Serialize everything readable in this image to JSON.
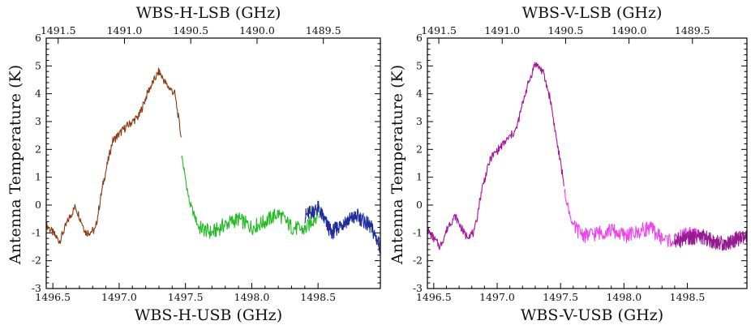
{
  "chart_data": [
    {
      "type": "line",
      "xlabel": "WBS-H-USB (GHz)",
      "x2label": "WBS-H-LSB (GHz)",
      "ylabel": "Antenna Temperature (K)",
      "xlim": [
        1496.45,
        1498.97
      ],
      "ylim": [
        -3,
        6
      ],
      "xticks": [
        "1496.5",
        "1497.0",
        "1497.5",
        "1498.0",
        "1498.5"
      ],
      "x2ticks": [
        "1491.5",
        "1491.0",
        "1490.5",
        "1490.0",
        "1489.5"
      ],
      "yticks": [
        "-3",
        "-2",
        "-1",
        "0",
        "1",
        "2",
        "3",
        "4",
        "5",
        "6"
      ],
      "series": [
        {
          "color": "#8b3a0f",
          "x": [
            1496.45,
            1496.55,
            1496.62,
            1496.67,
            1496.75,
            1496.82,
            1496.88,
            1496.95,
            1497.05,
            1497.15,
            1497.22,
            1497.3,
            1497.36,
            1497.42,
            1497.47
          ],
          "y": [
            -0.7,
            -1.3,
            -0.5,
            -0.05,
            -1.0,
            -0.9,
            0.8,
            2.3,
            2.8,
            3.2,
            4.1,
            4.8,
            4.3,
            4.0,
            2.4
          ]
        },
        {
          "color": "#22bb22",
          "x": [
            1497.47,
            1497.53,
            1497.6,
            1497.7,
            1497.8,
            1497.9,
            1498.0,
            1498.1,
            1498.2,
            1498.3,
            1498.4,
            1498.5
          ],
          "y": [
            1.8,
            0.1,
            -0.8,
            -1.0,
            -0.7,
            -0.5,
            -0.8,
            -0.6,
            -0.3,
            -0.8,
            -0.9,
            -0.3
          ]
        },
        {
          "color": "#1f2d9c",
          "x": [
            1498.4,
            1498.5,
            1498.6,
            1498.7,
            1498.8,
            1498.9,
            1498.97
          ],
          "y": [
            -0.4,
            -0.1,
            -1.0,
            -0.6,
            -0.4,
            -0.8,
            -1.5
          ]
        }
      ]
    },
    {
      "type": "line",
      "xlabel": "WBS-V-USB (GHz)",
      "x2label": "WBS-V-LSB (GHz)",
      "ylabel": "Antenna Temperature (K)",
      "xlim": [
        1496.45,
        1498.97
      ],
      "ylim": [
        -3,
        6
      ],
      "xticks": [
        "1496.5",
        "1497.0",
        "1497.5",
        "1498.0",
        "1498.5"
      ],
      "x2ticks": [
        "1491.5",
        "1491.0",
        "1490.5",
        "1490.0",
        "1489.5"
      ],
      "yticks": [
        "-3",
        "-2",
        "-1",
        "0",
        "1",
        "2",
        "3",
        "4",
        "5",
        "6"
      ],
      "series": [
        {
          "color": "#a7139f",
          "x": [
            1496.45,
            1496.55,
            1496.62,
            1496.67,
            1496.75,
            1496.82,
            1496.88,
            1496.95,
            1497.05,
            1497.15,
            1497.22,
            1497.3,
            1497.36,
            1497.42,
            1497.47,
            1497.53
          ],
          "y": [
            -0.9,
            -1.5,
            -0.7,
            -0.4,
            -1.1,
            -1.0,
            0.6,
            1.7,
            2.2,
            2.7,
            4.0,
            5.1,
            4.8,
            3.8,
            2.3,
            0.7
          ]
        },
        {
          "color": "#ee44ee",
          "x": [
            1497.53,
            1497.6,
            1497.7,
            1497.8,
            1497.9,
            1498.0,
            1498.1,
            1498.2,
            1498.3,
            1498.4,
            1498.5,
            1498.6
          ],
          "y": [
            0.5,
            -0.8,
            -1.1,
            -1.0,
            -0.9,
            -1.1,
            -1.0,
            -0.8,
            -1.2,
            -1.3,
            -1.0,
            -1.1
          ]
        },
        {
          "color": "#951a90",
          "x": [
            1498.4,
            1498.5,
            1498.6,
            1498.7,
            1498.8,
            1498.9,
            1498.97
          ],
          "y": [
            -1.3,
            -1.2,
            -1.1,
            -1.3,
            -1.4,
            -1.2,
            -1.2
          ]
        }
      ]
    }
  ]
}
